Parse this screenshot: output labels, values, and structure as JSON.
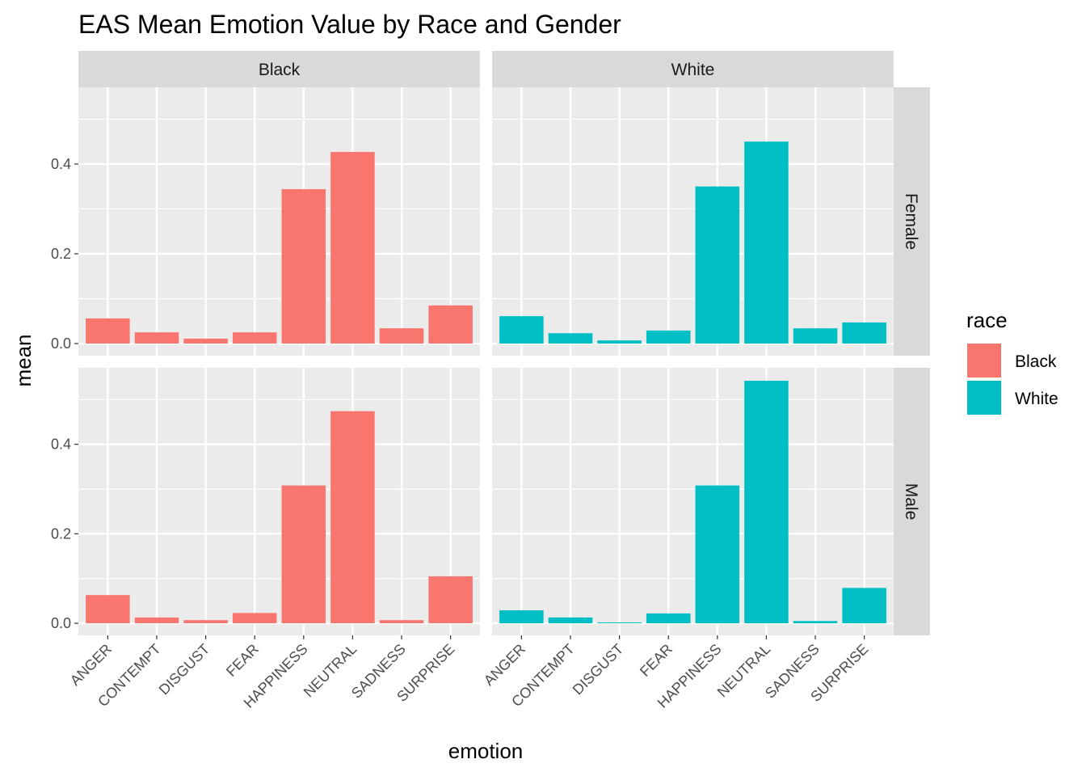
{
  "chart_data": {
    "type": "bar",
    "title": "EAS Mean Emotion Value by Race and Gender",
    "xlabel": "emotion",
    "ylabel": "mean",
    "categories": [
      "ANGER",
      "CONTEMPT",
      "DISGUST",
      "FEAR",
      "HAPPINESS",
      "NEUTRAL",
      "SADNESS",
      "SURPRISE"
    ],
    "ylim": [
      -0.027,
      0.571
    ],
    "yticks": [
      0.0,
      0.2,
      0.4
    ],
    "ytick_labels": [
      "0.0",
      "0.2",
      "0.4"
    ],
    "grid": true,
    "facet_cols": [
      "Black",
      "White"
    ],
    "facet_rows": [
      "Female",
      "Male"
    ],
    "legend": {
      "title": "race",
      "position": "right",
      "entries": [
        {
          "label": "Black",
          "color": "#F8766D"
        },
        {
          "label": "White",
          "color": "#00BFC4"
        }
      ]
    },
    "panels": [
      {
        "race": "Black",
        "gender": "Female",
        "values": [
          0.056,
          0.025,
          0.011,
          0.025,
          0.344,
          0.427,
          0.034,
          0.085
        ]
      },
      {
        "race": "White",
        "gender": "Female",
        "values": [
          0.061,
          0.023,
          0.007,
          0.029,
          0.35,
          0.45,
          0.034,
          0.047
        ]
      },
      {
        "race": "Black",
        "gender": "Male",
        "values": [
          0.063,
          0.013,
          0.007,
          0.023,
          0.308,
          0.474,
          0.007,
          0.105
        ]
      },
      {
        "race": "White",
        "gender": "Male",
        "values": [
          0.029,
          0.013,
          0.002,
          0.022,
          0.308,
          0.542,
          0.005,
          0.079
        ]
      }
    ]
  }
}
